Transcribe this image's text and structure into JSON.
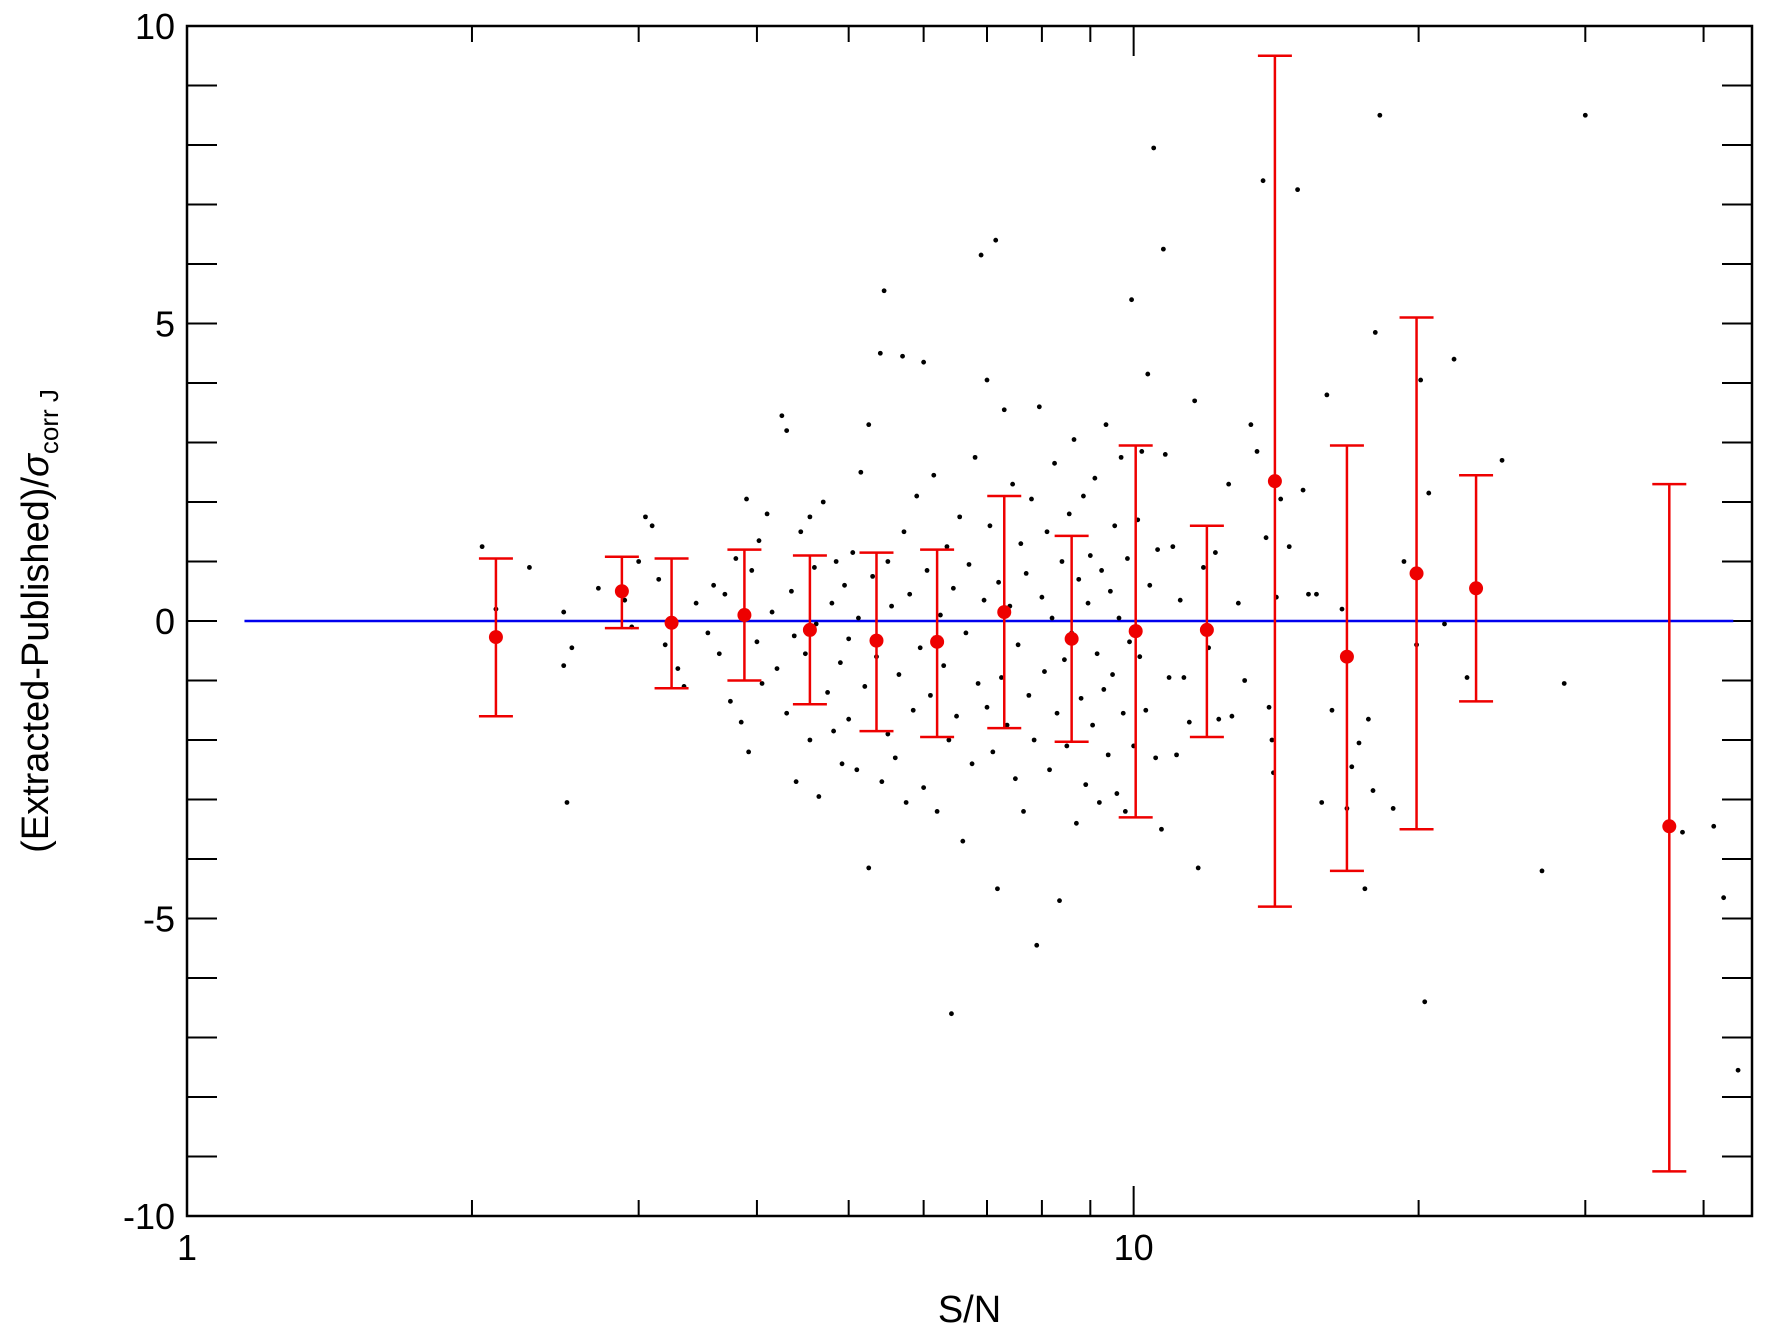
{
  "chart_data": {
    "type": "scatter",
    "xscale": "log",
    "xlim": [
      1,
      45
    ],
    "ylim": [
      -10,
      10
    ],
    "xlabel": "S/N",
    "ylabel_prefix": "(Extracted-Published)/",
    "ylabel_sigma": "σ",
    "ylabel_subscript": "corr J",
    "x_ticks": [
      {
        "value": 1,
        "label": "1"
      },
      {
        "value": 10,
        "label": "10"
      }
    ],
    "x_minor_ticks": [
      2,
      3,
      4,
      5,
      6,
      7,
      8,
      9,
      20,
      30,
      40
    ],
    "y_ticks": [
      {
        "value": 10,
        "label": "10"
      },
      {
        "value": 5,
        "label": "5"
      },
      {
        "value": 0,
        "label": "0"
      },
      {
        "value": -5,
        "label": "-5"
      },
      {
        "value": -10,
        "label": "-10"
      }
    ],
    "y_minor_ticks": [
      9,
      8,
      7,
      6,
      4,
      3,
      2,
      1,
      -1,
      -2,
      -3,
      -4,
      -6,
      -7,
      -8,
      -9
    ],
    "reference_line": {
      "y": 0,
      "x_range": [
        1.15,
        43
      ],
      "color": "#0000ee"
    },
    "scatter_color": "#000000",
    "binned_color": "#ee0000",
    "binned_points": [
      {
        "x": 2.12,
        "y": -0.27,
        "lower": -1.6,
        "upper": 1.05
      },
      {
        "x": 2.88,
        "y": 0.5,
        "lower": -0.12,
        "upper": 1.08
      },
      {
        "x": 3.25,
        "y": -0.03,
        "lower": -1.13,
        "upper": 1.05
      },
      {
        "x": 3.88,
        "y": 0.1,
        "lower": -1.0,
        "upper": 1.2
      },
      {
        "x": 4.55,
        "y": -0.15,
        "lower": -1.4,
        "upper": 1.1
      },
      {
        "x": 5.35,
        "y": -0.33,
        "lower": -1.85,
        "upper": 1.15
      },
      {
        "x": 6.2,
        "y": -0.35,
        "lower": -1.95,
        "upper": 1.2
      },
      {
        "x": 7.3,
        "y": 0.15,
        "lower": -1.8,
        "upper": 2.1
      },
      {
        "x": 8.6,
        "y": -0.3,
        "lower": -2.03,
        "upper": 1.43
      },
      {
        "x": 10.05,
        "y": -0.17,
        "lower": -3.3,
        "upper": 2.95
      },
      {
        "x": 11.95,
        "y": -0.15,
        "lower": -1.95,
        "upper": 1.6
      },
      {
        "x": 14.1,
        "y": 2.35,
        "lower": -4.8,
        "upper": 9.5
      },
      {
        "x": 16.8,
        "y": -0.6,
        "lower": -4.2,
        "upper": 2.95
      },
      {
        "x": 19.9,
        "y": 0.8,
        "lower": -3.5,
        "upper": 5.1
      },
      {
        "x": 23.0,
        "y": 0.55,
        "lower": -1.35,
        "upper": 2.45
      },
      {
        "x": 36.8,
        "y": -3.45,
        "lower": -9.25,
        "upper": 2.3
      }
    ],
    "scatter_points": [
      [
        2.05,
        1.25
      ],
      [
        2.12,
        0.2
      ],
      [
        2.3,
        0.9
      ],
      [
        2.5,
        0.15
      ],
      [
        2.5,
        -0.75
      ],
      [
        2.55,
        -0.45
      ],
      [
        2.52,
        -3.05
      ],
      [
        2.72,
        0.55
      ],
      [
        2.9,
        0.35
      ],
      [
        2.95,
        -0.1
      ],
      [
        3.0,
        1.0
      ],
      [
        3.05,
        1.75
      ],
      [
        3.1,
        1.6
      ],
      [
        3.15,
        0.7
      ],
      [
        3.2,
        -0.4
      ],
      [
        3.3,
        -0.8
      ],
      [
        3.35,
        -1.1
      ],
      [
        3.45,
        0.3
      ],
      [
        3.55,
        -0.2
      ],
      [
        3.6,
        0.6
      ],
      [
        3.65,
        -0.55
      ],
      [
        3.7,
        0.45
      ],
      [
        3.75,
        -1.35
      ],
      [
        3.8,
        1.05
      ],
      [
        3.85,
        -1.7
      ],
      [
        3.9,
        2.05
      ],
      [
        3.92,
        -2.2
      ],
      [
        3.95,
        0.85
      ],
      [
        4.0,
        -0.35
      ],
      [
        4.02,
        1.35
      ],
      [
        4.05,
        -1.05
      ],
      [
        4.1,
        1.8
      ],
      [
        4.15,
        0.15
      ],
      [
        4.2,
        -0.8
      ],
      [
        4.25,
        3.45
      ],
      [
        4.3,
        3.2
      ],
      [
        4.3,
        -1.55
      ],
      [
        4.35,
        0.5
      ],
      [
        4.38,
        -0.25
      ],
      [
        4.4,
        -2.7
      ],
      [
        4.45,
        1.5
      ],
      [
        4.5,
        -0.55
      ],
      [
        4.55,
        1.75
      ],
      [
        4.55,
        -2.0
      ],
      [
        4.6,
        0.9
      ],
      [
        4.62,
        -0.05
      ],
      [
        4.65,
        -2.95
      ],
      [
        4.7,
        2.0
      ],
      [
        4.75,
        -1.2
      ],
      [
        4.8,
        0.3
      ],
      [
        4.82,
        -1.85
      ],
      [
        4.85,
        1.0
      ],
      [
        4.9,
        -0.7
      ],
      [
        4.92,
        -2.4
      ],
      [
        4.95,
        0.6
      ],
      [
        5.0,
        -0.3
      ],
      [
        5.0,
        -1.65
      ],
      [
        5.05,
        1.15
      ],
      [
        5.1,
        -2.5
      ],
      [
        5.12,
        0.05
      ],
      [
        5.15,
        2.5
      ],
      [
        5.2,
        -1.1
      ],
      [
        5.25,
        3.3
      ],
      [
        5.25,
        -4.15
      ],
      [
        5.3,
        0.75
      ],
      [
        5.35,
        -0.6
      ],
      [
        5.4,
        4.5
      ],
      [
        5.42,
        -2.7
      ],
      [
        5.45,
        5.55
      ],
      [
        5.5,
        1.0
      ],
      [
        5.5,
        -1.9
      ],
      [
        5.55,
        0.25
      ],
      [
        5.6,
        -2.3
      ],
      [
        5.65,
        -0.9
      ],
      [
        5.7,
        4.45
      ],
      [
        5.72,
        1.5
      ],
      [
        5.75,
        -3.05
      ],
      [
        5.8,
        0.45
      ],
      [
        5.85,
        -1.5
      ],
      [
        5.9,
        2.1
      ],
      [
        5.95,
        -0.45
      ],
      [
        6.0,
        4.35
      ],
      [
        6.0,
        -2.8
      ],
      [
        6.05,
        0.85
      ],
      [
        6.1,
        -1.25
      ],
      [
        6.15,
        2.45
      ],
      [
        6.2,
        -3.2
      ],
      [
        6.25,
        0.1
      ],
      [
        6.3,
        -0.75
      ],
      [
        6.35,
        1.25
      ],
      [
        6.38,
        -2.0
      ],
      [
        6.42,
        -6.6
      ],
      [
        6.45,
        0.55
      ],
      [
        6.5,
        -1.6
      ],
      [
        6.55,
        1.75
      ],
      [
        6.6,
        -3.7
      ],
      [
        6.65,
        -0.2
      ],
      [
        6.7,
        0.95
      ],
      [
        6.75,
        -2.4
      ],
      [
        6.8,
        2.75
      ],
      [
        6.85,
        -1.05
      ],
      [
        6.9,
        6.15
      ],
      [
        6.95,
        0.35
      ],
      [
        7.0,
        4.05
      ],
      [
        7.0,
        -1.45
      ],
      [
        7.05,
        1.6
      ],
      [
        7.1,
        -2.2
      ],
      [
        7.15,
        6.4
      ],
      [
        7.18,
        -4.5
      ],
      [
        7.2,
        0.65
      ],
      [
        7.25,
        -0.95
      ],
      [
        7.3,
        3.55
      ],
      [
        7.35,
        -1.75
      ],
      [
        7.4,
        0.25
      ],
      [
        7.45,
        2.3
      ],
      [
        7.5,
        -2.65
      ],
      [
        7.55,
        -0.4
      ],
      [
        7.6,
        1.3
      ],
      [
        7.65,
        -3.2
      ],
      [
        7.7,
        0.8
      ],
      [
        7.75,
        -1.25
      ],
      [
        7.8,
        2.05
      ],
      [
        7.85,
        -2.0
      ],
      [
        7.9,
        -5.45
      ],
      [
        7.95,
        3.6
      ],
      [
        8.0,
        0.4
      ],
      [
        8.05,
        -0.85
      ],
      [
        8.1,
        1.5
      ],
      [
        8.15,
        -2.5
      ],
      [
        8.2,
        0.05
      ],
      [
        8.25,
        2.65
      ],
      [
        8.3,
        -1.55
      ],
      [
        8.35,
        -4.7
      ],
      [
        8.4,
        1.0
      ],
      [
        8.45,
        -0.65
      ],
      [
        8.5,
        -2.1
      ],
      [
        8.55,
        1.8
      ],
      [
        8.6,
        -0.2
      ],
      [
        8.65,
        3.05
      ],
      [
        8.7,
        -3.4
      ],
      [
        8.75,
        0.7
      ],
      [
        8.8,
        -1.3
      ],
      [
        8.85,
        2.1
      ],
      [
        8.9,
        -2.75
      ],
      [
        8.95,
        0.3
      ],
      [
        9.0,
        1.1
      ],
      [
        9.05,
        -1.75
      ],
      [
        9.1,
        2.4
      ],
      [
        9.15,
        -0.55
      ],
      [
        9.2,
        -3.05
      ],
      [
        9.25,
        0.85
      ],
      [
        9.3,
        -1.15
      ],
      [
        9.35,
        3.3
      ],
      [
        9.4,
        -2.25
      ],
      [
        9.45,
        0.5
      ],
      [
        9.5,
        -0.9
      ],
      [
        9.55,
        1.6
      ],
      [
        9.6,
        -2.9
      ],
      [
        9.65,
        0.05
      ],
      [
        9.7,
        2.75
      ],
      [
        9.75,
        -1.55
      ],
      [
        9.8,
        -3.2
      ],
      [
        9.85,
        1.05
      ],
      [
        9.9,
        -0.35
      ],
      [
        9.95,
        5.4
      ],
      [
        10.0,
        -2.1
      ],
      [
        10.1,
        1.7
      ],
      [
        10.15,
        -0.6
      ],
      [
        10.2,
        2.85
      ],
      [
        10.3,
        -1.5
      ],
      [
        10.35,
        4.15
      ],
      [
        10.4,
        0.6
      ],
      [
        10.5,
        7.95
      ],
      [
        10.55,
        -2.3
      ],
      [
        10.6,
        1.2
      ],
      [
        10.7,
        -3.5
      ],
      [
        10.75,
        6.25
      ],
      [
        10.8,
        2.8
      ],
      [
        10.9,
        -0.95
      ],
      [
        11.0,
        1.25
      ],
      [
        11.1,
        -2.25
      ],
      [
        11.2,
        0.35
      ],
      [
        11.3,
        -0.95
      ],
      [
        11.45,
        -1.7
      ],
      [
        11.6,
        3.7
      ],
      [
        11.7,
        -4.15
      ],
      [
        11.85,
        0.9
      ],
      [
        12.0,
        -0.45
      ],
      [
        12.2,
        1.15
      ],
      [
        12.3,
        -1.65
      ],
      [
        12.6,
        2.3
      ],
      [
        12.7,
        -1.6
      ],
      [
        12.9,
        0.3
      ],
      [
        13.1,
        -1.0
      ],
      [
        13.3,
        3.3
      ],
      [
        13.5,
        2.85
      ],
      [
        13.7,
        7.4
      ],
      [
        13.8,
        1.4
      ],
      [
        13.9,
        -1.45
      ],
      [
        14.0,
        -2.0
      ],
      [
        14.05,
        -2.55
      ],
      [
        14.15,
        0.4
      ],
      [
        14.3,
        2.05
      ],
      [
        14.6,
        1.25
      ],
      [
        14.9,
        7.25
      ],
      [
        15.1,
        2.2
      ],
      [
        15.3,
        0.45
      ],
      [
        15.6,
        0.45
      ],
      [
        15.8,
        -3.05
      ],
      [
        16.0,
        3.8
      ],
      [
        16.2,
        -1.5
      ],
      [
        16.6,
        0.2
      ],
      [
        16.8,
        -3.15
      ],
      [
        17.0,
        -2.45
      ],
      [
        17.3,
        -2.05
      ],
      [
        17.55,
        -4.5
      ],
      [
        17.7,
        -1.65
      ],
      [
        17.9,
        -2.85
      ],
      [
        18.0,
        4.85
      ],
      [
        18.2,
        8.5
      ],
      [
        18.8,
        -3.15
      ],
      [
        19.3,
        1.0
      ],
      [
        19.9,
        -0.4
      ],
      [
        20.1,
        4.05
      ],
      [
        20.3,
        -6.4
      ],
      [
        20.5,
        2.15
      ],
      [
        21.3,
        -0.05
      ],
      [
        21.8,
        4.4
      ],
      [
        22.5,
        -0.95
      ],
      [
        24.5,
        2.7
      ],
      [
        27.0,
        -4.2
      ],
      [
        28.5,
        -1.05
      ],
      [
        30.0,
        8.5
      ],
      [
        38.0,
        -3.55
      ],
      [
        41.0,
        -3.45
      ],
      [
        42.0,
        -4.65
      ],
      [
        43.5,
        -7.55
      ]
    ]
  }
}
